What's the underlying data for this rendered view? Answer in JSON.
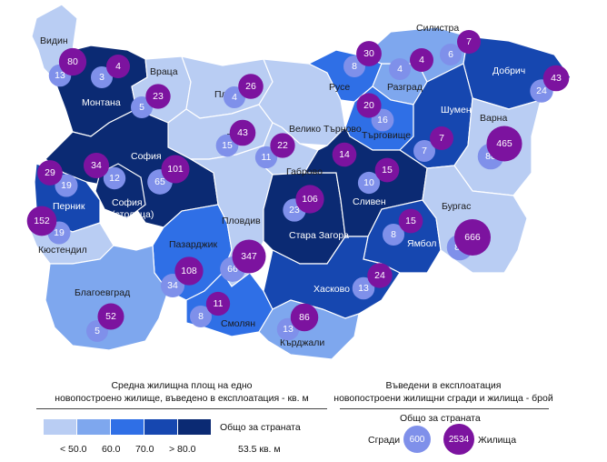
{
  "colors": {
    "c1": "#b9cdf3",
    "c2": "#7ea7ee",
    "c3": "#2f6fe6",
    "c4": "#1647b0",
    "c5": "#0b2a73",
    "buildings": "#7f90ea",
    "dwellings": "#7c139f"
  },
  "regions": [
    {
      "id": "vidin",
      "name": "Видин",
      "cls": "c1",
      "light": false,
      "buildings": "13",
      "dwellings": "80"
    },
    {
      "id": "montana",
      "name": "Монтана",
      "cls": "c5",
      "light": true,
      "buildings": "3",
      "dwellings": "4"
    },
    {
      "id": "vratsa",
      "name": "Враца",
      "cls": "c1",
      "light": false,
      "buildings": "5",
      "dwellings": "23"
    },
    {
      "id": "pleven",
      "name": "Плевен",
      "cls": "c1",
      "light": false,
      "buildings": "4",
      "dwellings": "26"
    },
    {
      "id": "lovech",
      "name": "Ловеч",
      "cls": "c1",
      "light": false,
      "buildings": "15",
      "dwellings": "43"
    },
    {
      "id": "vtarnovo",
      "name": "Велико Търново",
      "cls": "c1",
      "light": false,
      "buildings": "",
      "dwellings": ""
    },
    {
      "id": "gabrovo",
      "name": "Габрово",
      "cls": "c1",
      "light": false,
      "buildings": "11",
      "dwellings": "22"
    },
    {
      "id": "ruse",
      "name": "Русе",
      "cls": "c3",
      "light": false,
      "buildings": "8",
      "dwellings": "30"
    },
    {
      "id": "razgrad",
      "name": "Разград",
      "cls": "c2",
      "light": false,
      "buildings": "4",
      "dwellings": "4"
    },
    {
      "id": "silistra",
      "name": "Силистра",
      "cls": "c2",
      "light": false,
      "buildings": "6",
      "dwellings": "7"
    },
    {
      "id": "dobrich",
      "name": "Добрич",
      "cls": "c4",
      "light": true,
      "buildings": "24",
      "dwellings": "43"
    },
    {
      "id": "targovishte",
      "name": "Търговище",
      "cls": "c3",
      "light": false,
      "buildings": "16",
      "dwellings": "20"
    },
    {
      "id": "shumen",
      "name": "Шумен",
      "cls": "c4",
      "light": true,
      "buildings": "7",
      "dwellings": "7"
    },
    {
      "id": "varna",
      "name": "Варна",
      "cls": "c1",
      "light": false,
      "buildings": "88",
      "dwellings": "465"
    },
    {
      "id": "sofia_obl",
      "name": "София",
      "cls": "c5",
      "light": true,
      "buildings": "12",
      "dwellings": "34"
    },
    {
      "id": "sofia_city",
      "name": "София (столица)",
      "cls": "c5",
      "light": true,
      "buildings": "65",
      "dwellings": "101"
    },
    {
      "id": "pernik",
      "name": "Перник",
      "cls": "c4",
      "light": true,
      "buildings": "19",
      "dwellings": "29"
    },
    {
      "id": "kyustendil",
      "name": "Кюстендил",
      "cls": "c1",
      "light": false,
      "buildings": "19",
      "dwellings": "152"
    },
    {
      "id": "pazardzhik",
      "name": "Пазарджик",
      "cls": "c3",
      "light": false,
      "buildings": "34",
      "dwellings": "108"
    },
    {
      "id": "plovdiv",
      "name": "Пловдив",
      "cls": "c1",
      "light": false,
      "buildings": "66",
      "dwellings": "347"
    },
    {
      "id": "stara_zagora",
      "name": "Стара Загора",
      "cls": "c5",
      "light": true,
      "buildings": "23",
      "dwellings": "106"
    },
    {
      "id": "sliven",
      "name": "Сливен",
      "cls": "c5",
      "light": true,
      "buildings": "10",
      "dwellings": "14"
    },
    {
      "id": "yambol",
      "name": "Ямбол",
      "cls": "c4",
      "light": true,
      "buildings": "8",
      "dwellings": "15"
    },
    {
      "id": "burgas",
      "name": "Бургас",
      "cls": "c1",
      "light": false,
      "buildings": "87",
      "dwellings": "666"
    },
    {
      "id": "blagoevgrad",
      "name": "Благоевград",
      "cls": "c2",
      "light": false,
      "buildings": "5",
      "dwellings": "52"
    },
    {
      "id": "smolyan",
      "name": "Смолян",
      "cls": "c3",
      "light": false,
      "buildings": "8",
      "dwellings": "11"
    },
    {
      "id": "haskovo",
      "name": "Хасково",
      "cls": "c4",
      "light": true,
      "buildings": "13",
      "dwellings": "24"
    },
    {
      "id": "kardzhali",
      "name": "Кърджали",
      "cls": "c2",
      "light": false,
      "buildings": "13",
      "dwellings": "86"
    },
    {
      "id": "sliven_extra",
      "name": "",
      "cls": "c5",
      "light": true,
      "buildings": "",
      "dwellings": "15"
    }
  ],
  "legend_left": {
    "title_line1": "Средна жилищна площ на едно",
    "title_line2": "новопостроено жилище, въведено в експлоатация - кв. м",
    "labels": [
      "< 50.0",
      "60.0",
      "70.0",
      "> 80.0"
    ],
    "total_label": "Общо за страната",
    "total_value": "53.5 кв. м"
  },
  "legend_right": {
    "title_line1": "Въведени в експлоатация",
    "title_line2": "новопостроени жилищни сгради и жилища - брой",
    "total_label": "Общо за страната",
    "buildings_label": "Сгради",
    "buildings_value": "600",
    "dwellings_label": "Жилища",
    "dwellings_value": "2534"
  }
}
